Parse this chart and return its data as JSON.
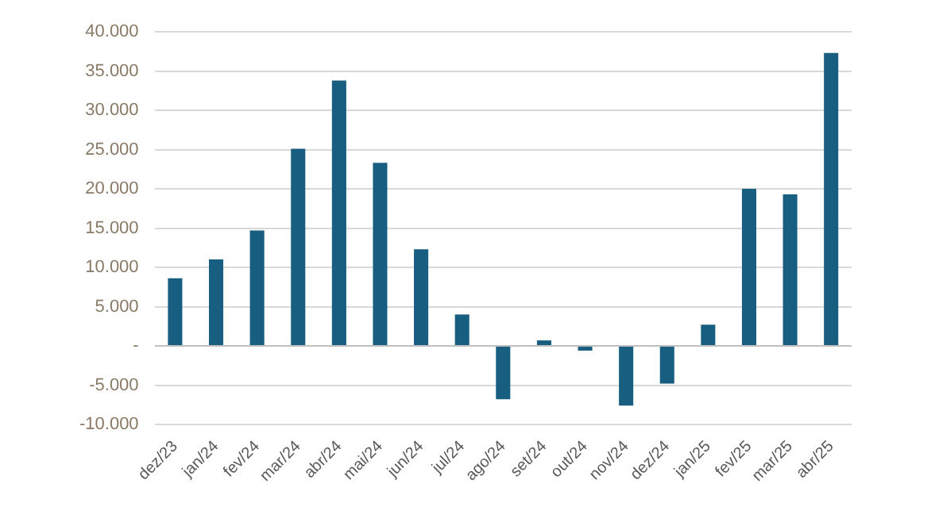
{
  "chart_data": {
    "type": "bar",
    "categories": [
      "dez/23",
      "jan/24",
      "fev/24",
      "mar/24",
      "abr/24",
      "mai/24",
      "jun/24",
      "jul/24",
      "ago/24",
      "set/24",
      "out/24",
      "nov/24",
      "dez/24",
      "jan/25",
      "fev/25",
      "mar/25",
      "abr/25"
    ],
    "values": [
      8600,
      11000,
      14700,
      25100,
      33800,
      23300,
      12300,
      4000,
      -6800,
      700,
      -600,
      -7600,
      -4800,
      2700,
      20000,
      19300,
      37300
    ],
    "color": "#175e80",
    "ylim": [
      -10000,
      40000
    ],
    "yticks": [
      {
        "value": -10000,
        "label": "-10.000"
      },
      {
        "value": -5000,
        "label": "-5.000"
      },
      {
        "value": 0,
        "label": "-"
      },
      {
        "value": 5000,
        "label": "5.000"
      },
      {
        "value": 10000,
        "label": "10.000"
      },
      {
        "value": 15000,
        "label": "15.000"
      },
      {
        "value": 20000,
        "label": "20.000"
      },
      {
        "value": 25000,
        "label": "25.000"
      },
      {
        "value": 30000,
        "label": "30.000"
      },
      {
        "value": 35000,
        "label": "35.000"
      },
      {
        "value": 40000,
        "label": "40.000"
      }
    ],
    "grid": "y"
  }
}
